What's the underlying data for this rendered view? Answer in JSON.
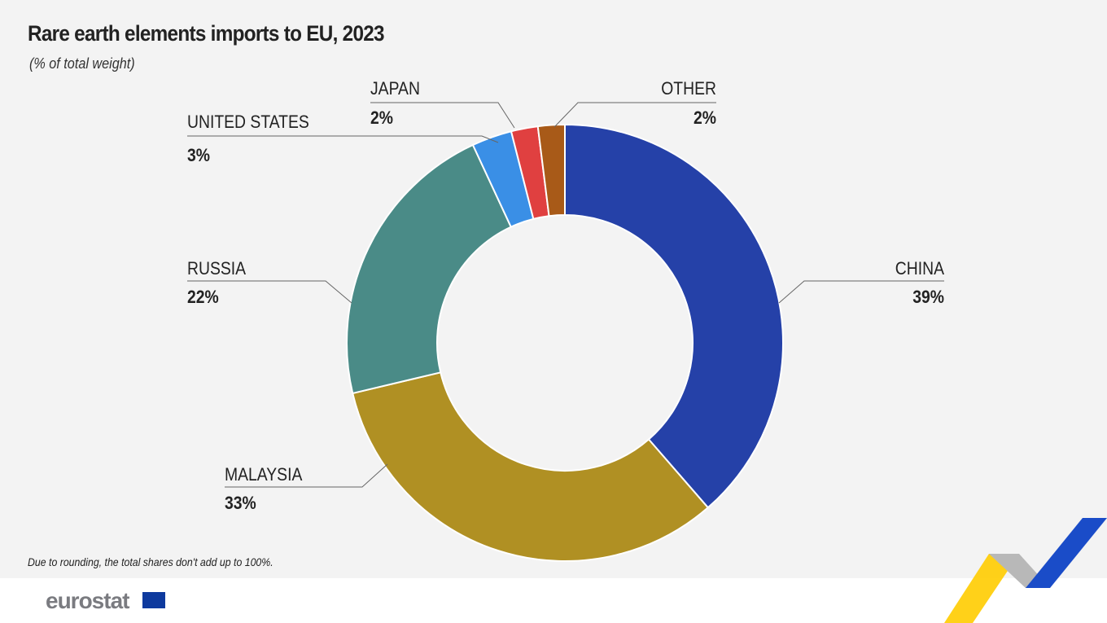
{
  "chart_data": {
    "type": "pie",
    "donut": true,
    "title": "Rare earth elements imports to EU, 2023",
    "subtitle": "(% of total weight)",
    "unit": "%",
    "slices": [
      {
        "label": "CHINA",
        "value": 39,
        "display": "39%",
        "color": "#2541a8"
      },
      {
        "label": "MALAYSIA",
        "value": 33,
        "display": "33%",
        "color": "#b09023"
      },
      {
        "label": "RUSSIA",
        "value": 22,
        "display": "22%",
        "color": "#4a8b87"
      },
      {
        "label": "UNITED STATES",
        "value": 3,
        "display": "3%",
        "color": "#3a8fe6"
      },
      {
        "label": "JAPAN",
        "value": 2,
        "display": "2%",
        "color": "#e04040"
      },
      {
        "label": "OTHER",
        "value": 2,
        "display": "2%",
        "color": "#a85a18"
      }
    ],
    "note": "Due to rounding, the total shares don't add up to 100%."
  },
  "footer": {
    "logo_text": "eurostat"
  }
}
